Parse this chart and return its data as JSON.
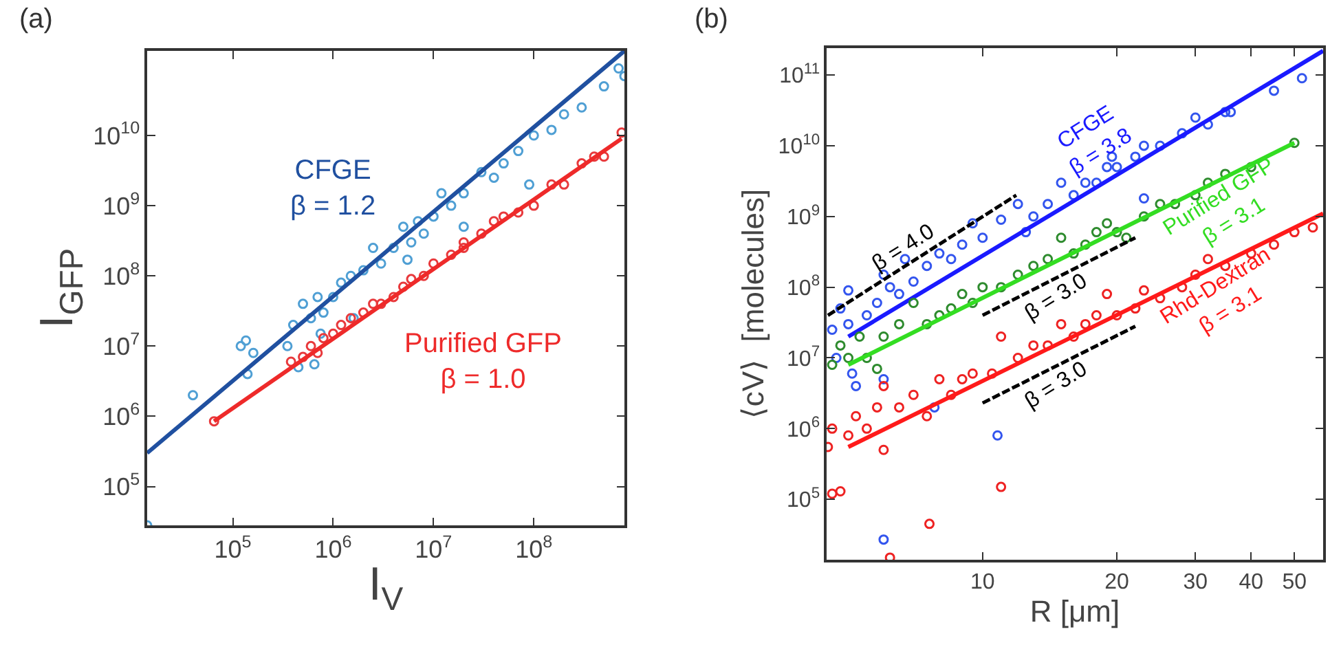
{
  "chart_data": [
    {
      "type": "scatter",
      "title": "(a)",
      "xlabel": "I$_{V}$",
      "ylabel": "I$_{GFP}$",
      "log": "xy",
      "legend": false,
      "xlim": [
        14000,
        800000000
      ],
      "ylim": [
        28000,
        160000000000
      ],
      "xticks": [
        {
          "value": 100000,
          "label": "10$^{5}$"
        },
        {
          "value": 1000000,
          "label": "10$^{6}$"
        },
        {
          "value": 10000000,
          "label": "10$^{7}$"
        },
        {
          "value": 100000000,
          "label": "10$^{8}$"
        }
      ],
      "yticks": [
        {
          "value": 100000,
          "label": "10$^{5}$"
        },
        {
          "value": 1000000,
          "label": "10$^{6}$"
        },
        {
          "value": 10000000,
          "label": "10$^{7}$"
        },
        {
          "value": 100000000,
          "label": "10$^{8}$"
        },
        {
          "value": 1000000000,
          "label": "10$^{9}$"
        },
        {
          "value": 10000000000,
          "label": "10$^{10}$"
        }
      ],
      "series": [
        {
          "color": "#4f9fd4",
          "marker": "circle",
          "x": [
            14000,
            40000,
            120000,
            135000,
            160000,
            140000,
            350000,
            450000,
            400000,
            500000,
            600000,
            700000,
            650000,
            750000,
            800000,
            1000000,
            1200000,
            1500000,
            1600000,
            2000000,
            2500000,
            3000000,
            4000000,
            5000000,
            5500000,
            6000000,
            7000000,
            8000000,
            10000000,
            12000000,
            15000000,
            20000000,
            20000000,
            30000000,
            40000000,
            50000000,
            70000000,
            90000000,
            100000000,
            150000000,
            200000000,
            300000000,
            500000000,
            700000000,
            800000000
          ],
          "values": [
            28000,
            2000000,
            10000000,
            12000000,
            8000000,
            4000000,
            10000000,
            5000000,
            20000000,
            40000000,
            25000000,
            50000000,
            5500000,
            15000000,
            30000000,
            50000000,
            80000000,
            100000000,
            25000000,
            120000000,
            250000000,
            150000000,
            250000000,
            500000000,
            170000000,
            300000000,
            600000000,
            400000000,
            700000000,
            1500000000,
            1000000000,
            500000000,
            1500000000,
            3000000000,
            2500000000,
            4000000000,
            6000000000,
            2000000000,
            10000000000,
            12000000000,
            20000000000,
            25000000000,
            50000000000,
            90000000000,
            70000000000
          ]
        },
        {
          "type": "line",
          "name": "CFGE\nβ = 1.2",
          "marker": "none",
          "color": "#2050a0",
          "x": [
            14000,
            800000000
          ],
          "values": [
            300000,
            160000000000
          ]
        },
        {
          "color": "#e8393c",
          "marker": "circle",
          "x": [
            65000,
            380000,
            500000,
            600000,
            700000,
            800000,
            1000000,
            1200000,
            1500000,
            2000000,
            2500000,
            3000000,
            4000000,
            5000000,
            6000000,
            8000000,
            10000000,
            15000000,
            20000000,
            20000000,
            30000000,
            40000000,
            50000000,
            70000000,
            100000000,
            150000000,
            200000000,
            300000000,
            400000000,
            500000000,
            750000000
          ],
          "values": [
            850000,
            6000000,
            7000000,
            10000000,
            8000000,
            13000000,
            15000000,
            20000000,
            25000000,
            30000000,
            40000000,
            40000000,
            50000000,
            70000000,
            90000000,
            100000000,
            150000000,
            200000000,
            250000000,
            300000000,
            400000000,
            600000000,
            700000000,
            800000000,
            1000000000,
            2000000000,
            2000000000,
            4000000000,
            5000000000,
            5000000000,
            11000000000
          ]
        },
        {
          "type": "line",
          "name": "Purified GFP\nβ = 1.0",
          "marker": "none",
          "color": "#ee2a2a",
          "x": [
            65000,
            750000000
          ],
          "values": [
            850000,
            9000000000
          ]
        }
      ]
    },
    {
      "type": "scatter",
      "title": "(b)",
      "xlabel": "R [μm]",
      "ylabel": "⟨cV⟩  [molecules]",
      "log": "xy",
      "legend": false,
      "xlim": [
        4.47,
        58
      ],
      "ylim": [
        14000,
        240000000000
      ],
      "xticks": [
        10,
        20,
        30,
        40,
        50
      ],
      "yticks": [
        {
          "value": 100000,
          "label": "10$^{5}$"
        },
        {
          "value": 1000000,
          "label": "10$^{6}$"
        },
        {
          "value": 10000000,
          "label": "10$^{7}$"
        },
        {
          "value": 100000000,
          "label": "10$^{8}$"
        },
        {
          "value": 1000000000,
          "label": "10$^{9}$"
        },
        {
          "value": 10000000000,
          "label": "10$^{10}$"
        },
        {
          "value": 100000000000,
          "label": "10$^{11}$"
        }
      ],
      "series": [
        {
          "color": "#3355ee",
          "marker": "circle",
          "x": [
            4.6,
            4.7,
            4.8,
            5,
            5,
            5.1,
            5.2,
            5.5,
            5.8,
            6,
            6,
            6.2,
            6.5,
            6.7,
            6,
            7,
            7.5,
            7.8,
            8,
            8.5,
            9,
            9.5,
            10,
            10.8,
            11,
            12,
            12.5,
            13,
            14,
            15,
            16,
            17,
            18,
            19,
            19.5,
            20,
            22,
            23,
            23,
            25,
            28,
            30,
            32,
            35,
            36,
            45,
            52
          ],
          "values": [
            25000000,
            10000000,
            50000000,
            30000000,
            90000000,
            6000000,
            4000000,
            40000000,
            60000000,
            150000000,
            5000000,
            100000000,
            80000000,
            250000000,
            27000,
            120000000,
            200000000,
            2000000,
            300000000,
            250000000,
            400000000,
            800000000,
            500000000,
            800000,
            900000000,
            1500000000,
            600000000,
            1000000000,
            1500000000,
            3000000000,
            2000000000,
            3000000000,
            3000000000,
            5000000000,
            7000000000,
            5000000000,
            7000000000,
            10000000000,
            1800000000,
            10000000000,
            15000000000,
            25000000000,
            20000000000,
            30000000000,
            30000000000,
            60000000000,
            90000000000
          ]
        },
        {
          "type": "line",
          "name": "CFGE\nβ = 3.8",
          "marker": "none",
          "color": "#1a1aff",
          "x": [
            5,
            58
          ],
          "values": [
            20000000,
            220000000000
          ]
        },
        {
          "color": "#2e8b2e",
          "marker": "circle",
          "x": [
            4.6,
            4.8,
            5,
            5.3,
            5.5,
            5.8,
            6,
            6.5,
            7,
            7.5,
            8,
            8.5,
            9,
            9.5,
            10,
            11,
            12,
            13,
            14,
            15,
            16,
            17,
            18,
            19,
            20,
            21,
            23,
            25,
            27,
            30,
            32,
            35,
            40,
            50
          ],
          "values": [
            8000000,
            15000000,
            10000000,
            20000000,
            10000000,
            7000000,
            20000000,
            30000000,
            60000000,
            30000000,
            40000000,
            50000000,
            80000000,
            60000000,
            100000000,
            100000000,
            150000000,
            200000000,
            250000000,
            500000000,
            300000000,
            400000000,
            600000000,
            800000000,
            600000000,
            500000000,
            1000000000,
            1500000000,
            1500000000,
            2000000000,
            3000000000,
            4000000000,
            5000000000,
            11000000000
          ]
        },
        {
          "type": "line",
          "name": "Purified GFP\nβ = 3.1",
          "marker": "none",
          "color": "#33dd22",
          "x": [
            5,
            50
          ],
          "values": [
            8000000,
            11000000000
          ]
        },
        {
          "color": "#ee2222",
          "marker": "circle",
          "x": [
            4.5,
            4.6,
            4.8,
            4.6,
            5,
            5.2,
            5.5,
            5.8,
            6,
            6,
            6.2,
            6.5,
            7,
            7.5,
            7.6,
            8,
            8.5,
            9,
            9.5,
            10.5,
            11,
            11,
            12,
            13,
            14,
            15,
            16,
            17,
            18,
            19,
            20,
            22,
            23,
            25,
            28,
            30,
            32,
            35,
            40,
            45,
            50,
            55
          ],
          "values": [
            550000,
            120000,
            130000,
            1000000,
            800000,
            1500000,
            1000000,
            2000000,
            500000,
            4000000,
            15000,
            2000000,
            3000000,
            1500000,
            45000,
            5000000,
            3000000,
            5000000,
            6000000,
            6000000,
            150000,
            20000000,
            10000000,
            15000000,
            15000000,
            30000000,
            20000000,
            30000000,
            40000000,
            80000000,
            40000000,
            50000000,
            90000000,
            70000000,
            100000000,
            150000000,
            250000000,
            200000000,
            300000000,
            400000000,
            600000000,
            700000000
          ]
        },
        {
          "type": "line",
          "name": "Rhd-Dextran\nβ = 3.1",
          "marker": "none",
          "color": "#ff1a1a",
          "x": [
            5,
            58
          ],
          "values": [
            550000,
            1100000000
          ]
        },
        {
          "type": "line",
          "name": "β = 4.0",
          "marker": "none",
          "color": "#000000",
          "line_style": "dashed",
          "x": [
            4.5,
            11.9
          ],
          "values": [
            40000000,
            2000000000
          ]
        },
        {
          "type": "line",
          "name": "β = 3.0",
          "marker": "none",
          "color": "#000000",
          "line_style": "dashed",
          "x": [
            10,
            22
          ],
          "values": [
            40000000,
            500000000
          ]
        },
        {
          "type": "line",
          "name": "β = 3.0",
          "marker": "none",
          "color": "#000000",
          "line_style": "dashed",
          "x": [
            10,
            22
          ],
          "values": [
            2300000,
            28000000
          ]
        }
      ]
    }
  ]
}
